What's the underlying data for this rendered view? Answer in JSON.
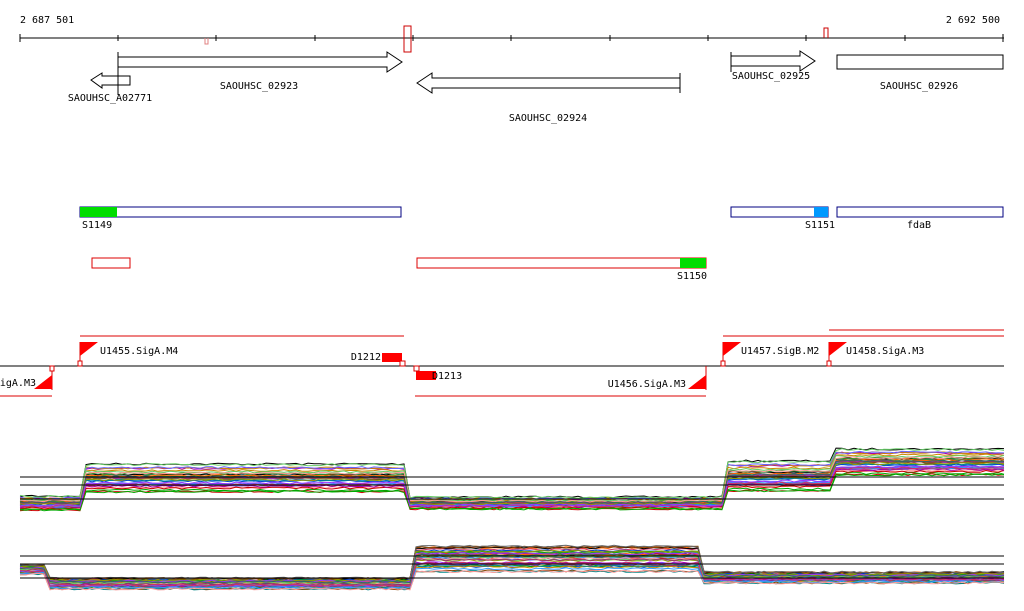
{
  "ruler": {
    "start_label": "2 687 501",
    "end_label": "2 692 500"
  },
  "genes": [
    {
      "id": "SAOUHSC_A02771",
      "strand": "-",
      "label": "SAOUHSC_A02771"
    },
    {
      "id": "SAOUHSC_02923",
      "strand": "+",
      "label": "SAOUHSC_02923"
    },
    {
      "id": "SAOUHSC_02924",
      "strand": "-",
      "label": "SAOUHSC_02924"
    },
    {
      "id": "SAOUHSC_02925",
      "strand": "+",
      "label": "SAOUHSC_02925"
    },
    {
      "id": "SAOUHSC_02926",
      "strand": "+",
      "label": "SAOUHSC_02926"
    }
  ],
  "segments_plus": [
    {
      "label": "S1149"
    },
    {
      "label": "S1151"
    },
    {
      "label": "fdaB"
    }
  ],
  "segments_minus": [
    {
      "label": "S1150"
    }
  ],
  "promoters": [
    {
      "label": "U1455.SigA.M4"
    },
    {
      "label": "D1212"
    },
    {
      "label": "igA.M3"
    },
    {
      "label": "D1213"
    },
    {
      "label": "U1456.SigA.M3"
    },
    {
      "label": "U1457.SigB.M2"
    },
    {
      "label": "U1458.SigA.M3"
    }
  ],
  "colors": {
    "gene_outline": "#000000",
    "segment_outline": "#000080",
    "segment_green": "#00dd00",
    "segment_blue": "#0099ff",
    "minus_outline": "#dd0000",
    "promoter_red": "#ff0000"
  }
}
